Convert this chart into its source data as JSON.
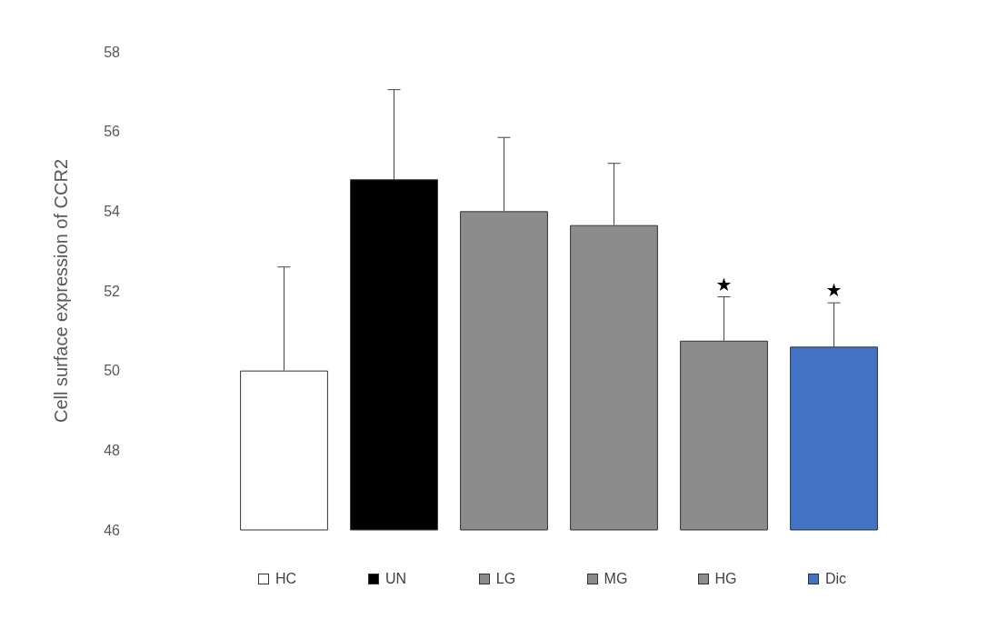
{
  "chart_data": {
    "type": "bar",
    "ylabel": "Cell surface expression of CCR2",
    "categories": [
      "HC",
      "UN",
      "LG",
      "MG",
      "HG",
      "Dic"
    ],
    "values": [
      50.0,
      54.8,
      54.0,
      53.65,
      50.75,
      50.6
    ],
    "colors": [
      "#ffffff",
      "#000000",
      "#8c8c8c",
      "#8c8c8c",
      "#8c8c8c",
      "#4472c4"
    ],
    "errors": [
      [
        50.0,
        52.6
      ],
      [
        54.8,
        57.05
      ],
      [
        54.0,
        55.85
      ],
      [
        53.65,
        55.2
      ],
      [
        50.75,
        51.85
      ],
      [
        50.6,
        51.7
      ]
    ],
    "annotations": [
      {
        "text": "★",
        "x": "HG",
        "y": 51.85
      },
      {
        "text": "★",
        "x": "Dic",
        "y": 51.7
      }
    ],
    "ylim": [
      46,
      58
    ],
    "yticks": [
      46,
      48,
      50,
      52,
      54,
      56,
      58
    ],
    "grid": false
  }
}
